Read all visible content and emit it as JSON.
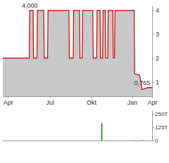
{
  "chart_data": [
    {
      "type": "line",
      "color": "#cc0000",
      "x": [
        0,
        62,
        63,
        71,
        72,
        80,
        81,
        96,
        97,
        105,
        106,
        155,
        156,
        165,
        166,
        180,
        181,
        186,
        187,
        211,
        212,
        220,
        221,
        228,
        229,
        234,
        235,
        240,
        241,
        246,
        247,
        258,
        259,
        262,
        263,
        308,
        309,
        318,
        320,
        324,
        326,
        332,
        338,
        344,
        350
      ],
      "values": [
        2,
        2,
        4,
        4,
        2,
        2,
        4,
        4,
        2,
        2,
        4,
        4,
        2,
        2,
        4,
        4,
        2,
        2,
        4,
        4,
        2,
        2,
        4,
        4,
        2,
        2,
        4,
        4,
        2,
        2,
        4,
        4,
        2,
        2,
        4,
        4,
        1.35,
        1.3,
        1.3,
        1.0,
        0.68,
        0.72,
        0.75,
        0.77,
        0.765
      ],
      "xlim": [
        0,
        350
      ],
      "xticks": [
        {
          "value": 12,
          "label": "Apr"
        },
        {
          "value": 110,
          "label": "Jul"
        },
        {
          "value": 207,
          "label": "Okt"
        },
        {
          "value": 303,
          "label": "Jan"
        },
        {
          "value": 350,
          "label": "Apr"
        }
      ],
      "ylim": [
        0.4,
        4.2
      ],
      "yticks": [
        1,
        2,
        3,
        4
      ],
      "annotations": [
        {
          "text": "4,000",
          "x": 63,
          "y": 4
        },
        {
          "text": "0,765",
          "x": 350,
          "y": 0.765
        }
      ]
    },
    {
      "type": "bar",
      "x": [
        20,
        60,
        95,
        150,
        232,
        270,
        310,
        325,
        330,
        340
      ],
      "values": [
        1,
        2,
        1,
        2,
        160,
        1,
        3,
        4,
        2,
        2
      ],
      "colors": [
        "#999999",
        "#999999",
        "#999999",
        "#999999",
        "#2ca02c",
        "#999999",
        "#999999",
        "#999999",
        "#999999",
        "#999999"
      ],
      "xlim": [
        0,
        350
      ],
      "ylim": [
        0,
        280
      ],
      "yticks": [
        {
          "value": 0,
          "label": "0"
        },
        {
          "value": 125,
          "label": "125T"
        },
        {
          "value": 250,
          "label": "250T"
        }
      ],
      "tick_labels": "y"
    }
  ]
}
